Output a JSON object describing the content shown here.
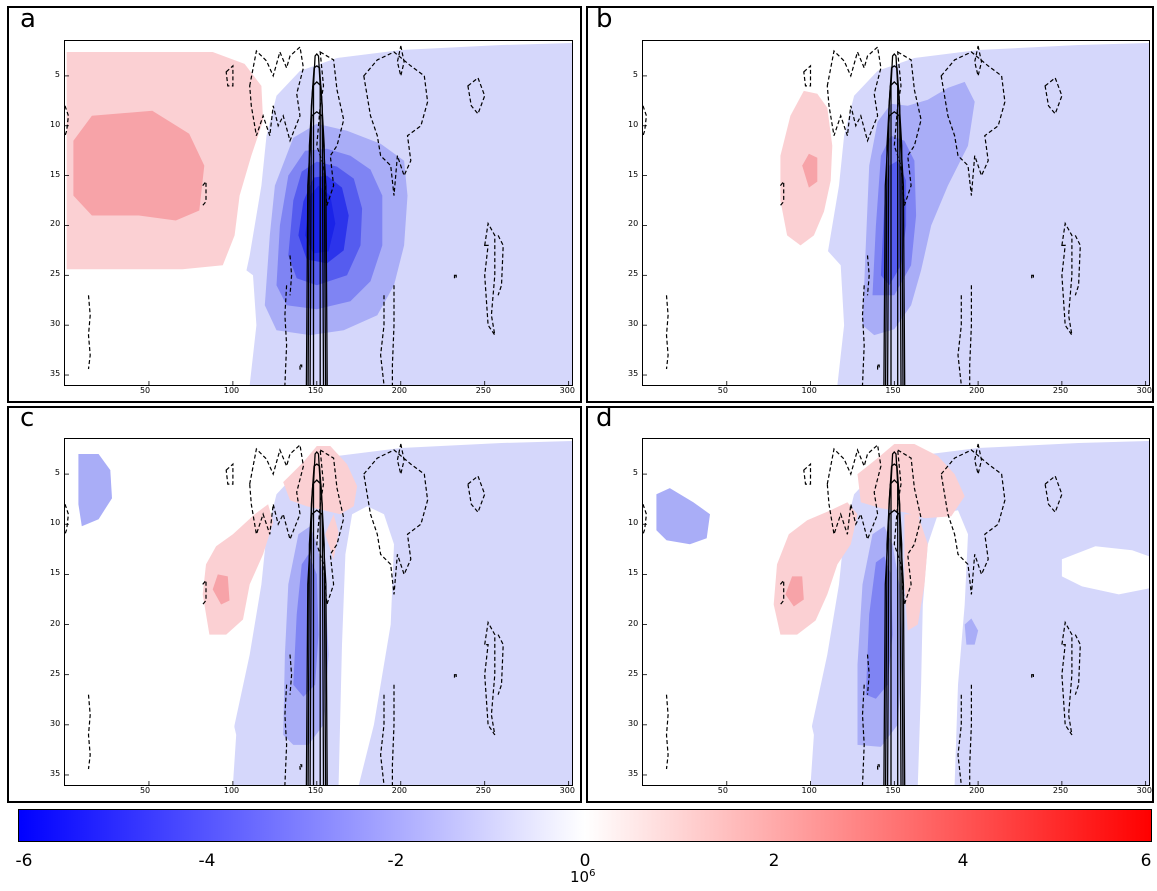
{
  "chart_data": {
    "type": "heatmap",
    "panels": [
      {
        "letter": "a"
      },
      {
        "letter": "b"
      },
      {
        "letter": "c"
      },
      {
        "letter": "d"
      }
    ],
    "x_ticks": [
      "50",
      "100",
      "150",
      "200",
      "250",
      "300"
    ],
    "x_tick_values": [
      50,
      100,
      150,
      200,
      250,
      300
    ],
    "y_ticks": [
      "5",
      "10",
      "15",
      "20",
      "25",
      "30",
      "35"
    ],
    "y_tick_values": [
      5,
      10,
      15,
      20,
      25,
      30,
      35
    ],
    "xlim": [
      0,
      302
    ],
    "ylim": [
      36,
      1.5
    ],
    "colorbar": {
      "min": -6,
      "max": 6,
      "tick_labels": [
        "-6",
        "-4",
        "-2",
        "0",
        "2",
        "4",
        "6"
      ],
      "tick_values": [
        -6,
        -4,
        -2,
        0,
        2,
        4,
        6
      ],
      "scale_base": "10",
      "scale_exponent": "6",
      "colors": {
        "negative": "#0000ff",
        "zero": "#ffffff",
        "positive": "#ff0000"
      }
    }
  }
}
